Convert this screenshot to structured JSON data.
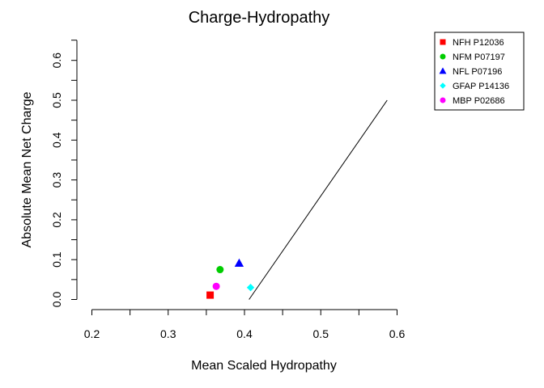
{
  "chart_data": {
    "type": "scatter",
    "title": "Charge-Hydropathy",
    "xlabel": "Mean Scaled Hydropathy",
    "ylabel": "Absolute Mean Net Charge",
    "xlim": [
      0.2,
      0.6
    ],
    "ylim": [
      0.0,
      0.6
    ],
    "x_ticks": [
      "0.2",
      "0.3",
      "0.4",
      "0.5",
      "0.6"
    ],
    "y_ticks": [
      "0.0",
      "0.1",
      "0.2",
      "0.3",
      "0.4",
      "0.5",
      "0.6"
    ],
    "boundary_line": {
      "x": [
        0.406,
        0.587
      ],
      "y": [
        0.0,
        0.5
      ]
    },
    "legend_position": "top-right",
    "series": [
      {
        "name": "NFH P12036",
        "marker": "square",
        "color": "#ff0000",
        "points": [
          {
            "x": 0.355,
            "y": 0.011
          }
        ]
      },
      {
        "name": "NFM P07197",
        "marker": "circle",
        "color": "#00cd00",
        "points": [
          {
            "x": 0.368,
            "y": 0.075
          }
        ]
      },
      {
        "name": "NFL P07196",
        "marker": "triangle",
        "color": "#0000ff",
        "points": [
          {
            "x": 0.393,
            "y": 0.091
          }
        ]
      },
      {
        "name": "GFAP P14136",
        "marker": "diamond",
        "color": "#00ffff",
        "points": [
          {
            "x": 0.408,
            "y": 0.03
          }
        ]
      },
      {
        "name": "MBP P02686",
        "marker": "circle",
        "color": "#ff00ff",
        "points": [
          {
            "x": 0.363,
            "y": 0.033
          }
        ]
      }
    ]
  }
}
